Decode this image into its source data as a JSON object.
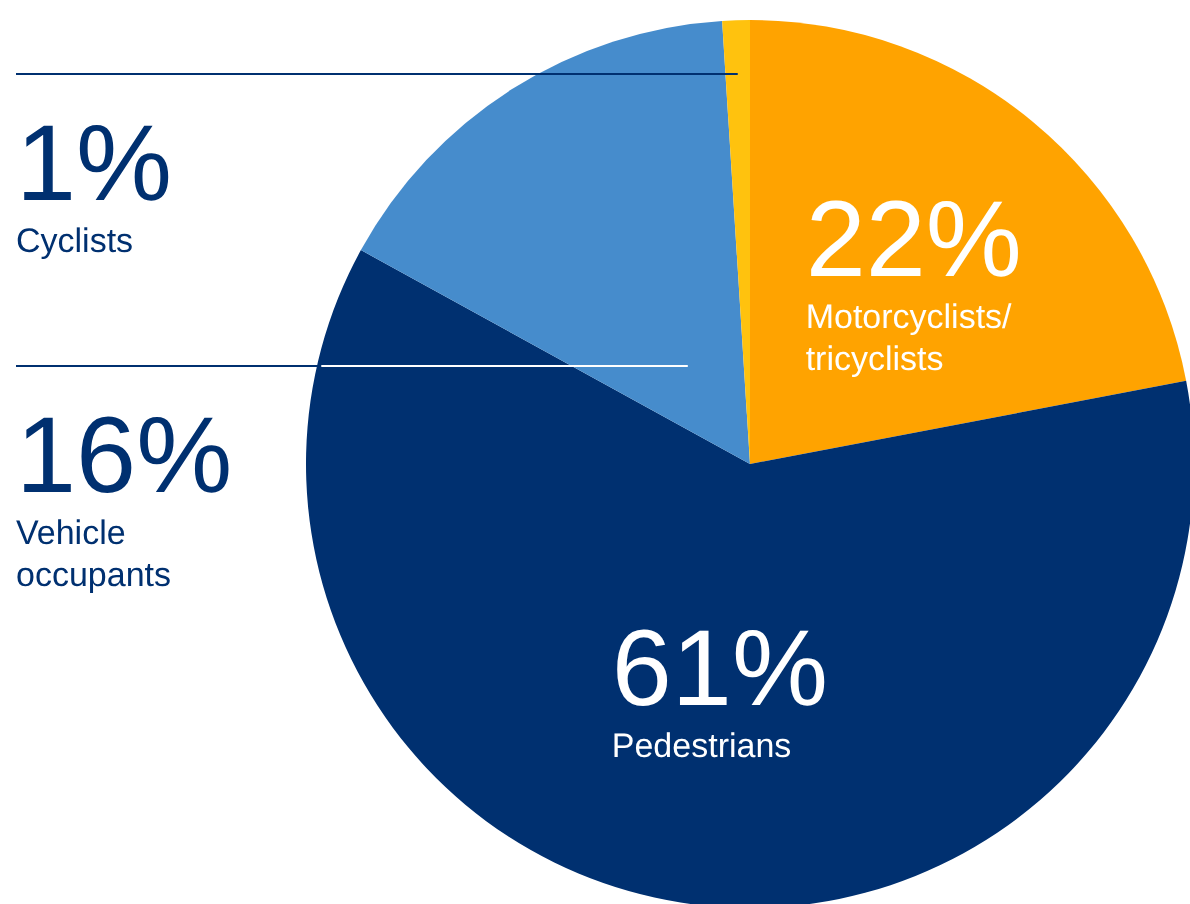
{
  "chart_data": {
    "type": "pie",
    "categories": [
      "Motorcyclists/ tricyclists",
      "Pedestrians",
      "Vehicle occupants",
      "Cyclists"
    ],
    "values": [
      22,
      61,
      16,
      1
    ],
    "colors": [
      "#ffa300",
      "#003070",
      "#468ccc",
      "#ffc20e"
    ],
    "value_labels": [
      "22%",
      "61%",
      "16%",
      "1%"
    ],
    "legend": false
  }
}
